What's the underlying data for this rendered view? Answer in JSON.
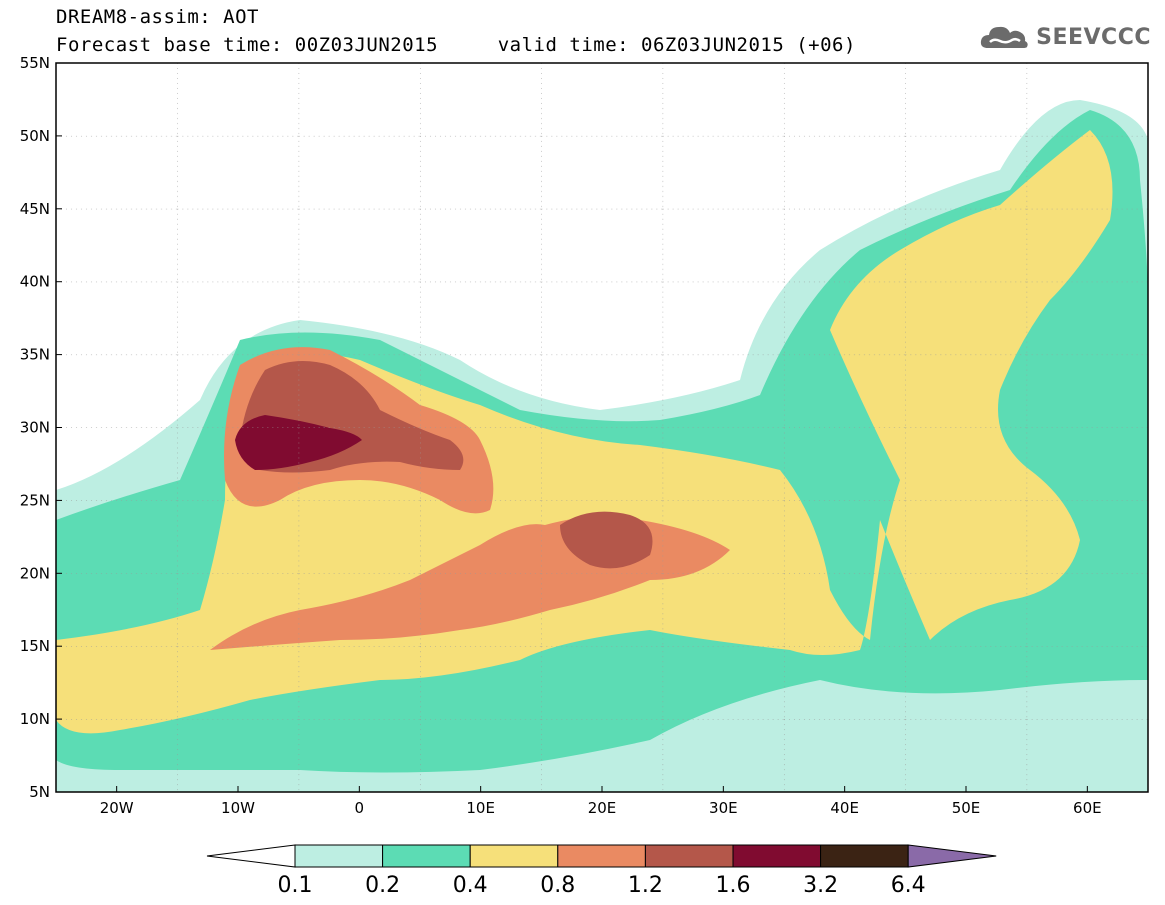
{
  "header": {
    "title_line1": "DREAM8-assim: AOT",
    "title_line2": "Forecast base time: 00Z03JUN2015     valid time: 06Z03JUN2015 (+06)"
  },
  "logo": {
    "text": "SEEVCCC",
    "icon": "cloud-icon"
  },
  "map": {
    "lat_range": [
      5,
      55
    ],
    "lon_range": [
      -25,
      65
    ],
    "lat_ticks": [
      "5N",
      "10N",
      "15N",
      "20N",
      "25N",
      "30N",
      "35N",
      "40N",
      "45N",
      "50N",
      "55N"
    ],
    "lon_ticks": [
      "20W",
      "10W",
      "0",
      "10E",
      "20E",
      "30E",
      "40E",
      "50E",
      "60E"
    ],
    "grid": "dotted"
  },
  "colorbar": {
    "labels": [
      "0.1",
      "0.2",
      "0.4",
      "0.8",
      "1.2",
      "1.6",
      "3.2",
      "6.4"
    ],
    "colors": [
      "#ffffff",
      "#bdeee2",
      "#5cdcb4",
      "#f6e07a",
      "#ea8a62",
      "#b4574a",
      "#800b30",
      "#3b2314",
      "#8a6aa8"
    ]
  }
}
